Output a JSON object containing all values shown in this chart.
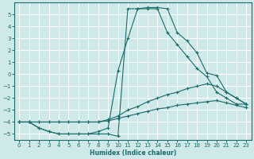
{
  "xlabel": "Humidex (Indice chaleur)",
  "bg_color": "#cfe8e8",
  "grid_color": "#b0d0d0",
  "line_color": "#1a6b6b",
  "xlim": [
    -0.5,
    23.5
  ],
  "ylim": [
    -5.5,
    6.0
  ],
  "xticks": [
    0,
    1,
    2,
    3,
    4,
    5,
    6,
    7,
    8,
    9,
    10,
    11,
    12,
    13,
    14,
    15,
    16,
    17,
    18,
    19,
    20,
    21,
    22,
    23
  ],
  "yticks": [
    -5,
    -4,
    -3,
    -2,
    -1,
    0,
    1,
    2,
    3,
    4,
    5
  ],
  "series": [
    {
      "x": [
        0,
        1,
        2,
        3,
        4,
        5,
        6,
        7,
        8,
        9,
        10,
        11,
        12,
        13,
        14,
        15,
        16,
        17,
        18,
        19,
        20,
        21,
        22,
        23
      ],
      "y": [
        -4,
        -4,
        -4.5,
        -4.8,
        -5,
        -5,
        -5,
        -5,
        -4.8,
        -4.5,
        0.3,
        3.0,
        5.5,
        5.5,
        5.5,
        3.5,
        2.5,
        1.5,
        0.5,
        -0.2,
        -1.5,
        -2,
        -2.5,
        -2.5
      ]
    },
    {
      "x": [
        0,
        1,
        2,
        3,
        4,
        5,
        6,
        7,
        8,
        9,
        10,
        11,
        12,
        13,
        14,
        15,
        16,
        17,
        18,
        19,
        20,
        21,
        22,
        23
      ],
      "y": [
        -4,
        -4,
        -4.5,
        -4.8,
        -5,
        -5,
        -5,
        -5,
        -5,
        -5,
        -5.2,
        5.5,
        5.5,
        5.6,
        5.6,
        5.5,
        3.5,
        2.8,
        1.8,
        0.1,
        -0.1,
        -1.5,
        -2,
        -2.5
      ]
    },
    {
      "x": [
        0,
        1,
        2,
        3,
        4,
        5,
        6,
        7,
        8,
        9,
        10,
        11,
        12,
        13,
        14,
        15,
        16,
        17,
        18,
        19,
        20,
        21,
        22,
        23
      ],
      "y": [
        -4,
        -4,
        -4,
        -4,
        -4,
        -4,
        -4,
        -4,
        -4,
        -3.8,
        -3.5,
        -3.0,
        -2.7,
        -2.3,
        -2.0,
        -1.7,
        -1.5,
        -1.2,
        -1.0,
        -0.8,
        -1.0,
        -1.5,
        -2.0,
        -2.5
      ]
    },
    {
      "x": [
        0,
        1,
        2,
        3,
        4,
        5,
        6,
        7,
        8,
        9,
        10,
        11,
        12,
        13,
        14,
        15,
        16,
        17,
        18,
        19,
        20,
        21,
        22,
        23
      ],
      "y": [
        -4,
        -4,
        -4,
        -4,
        -4,
        -4,
        -4,
        -4,
        -4,
        -3.9,
        -3.7,
        -3.5,
        -3.3,
        -3.1,
        -2.9,
        -2.8,
        -2.6,
        -2.5,
        -2.4,
        -2.3,
        -2.2,
        -2.4,
        -2.6,
        -2.8
      ]
    }
  ]
}
